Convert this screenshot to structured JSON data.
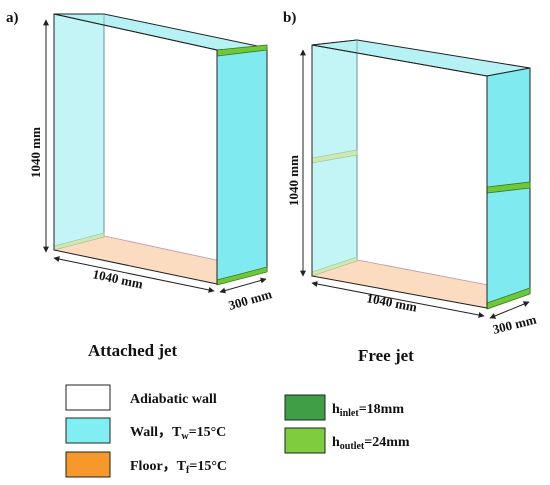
{
  "panels": [
    {
      "label": "a)",
      "caption": "Attached jet",
      "dim_height": "1040 mm",
      "dim_width": "1040 mm",
      "dim_depth": "300 mm"
    },
    {
      "label": "b)",
      "caption": "Free jet",
      "dim_height": "1040 mm",
      "dim_width": "1040 mm",
      "dim_depth": "300 mm"
    }
  ],
  "legend": {
    "adiabatic": {
      "text": "Adiabatic wall",
      "color": "#ffffff"
    },
    "wall": {
      "text": "Wall，T",
      "sub": "w",
      "tail": "=15°C",
      "color": "#80eef2"
    },
    "floor": {
      "text": "Floor，T",
      "sub": "f",
      "tail": "=15°C",
      "color": "#f7982a"
    },
    "inlet": {
      "text": "h",
      "sub": "inlet",
      "tail": "=18mm",
      "color": "#3f9f47"
    },
    "outlet": {
      "text": "h",
      "sub": "outlet",
      "tail": "=24mm",
      "color": "#7fcc3f"
    }
  }
}
